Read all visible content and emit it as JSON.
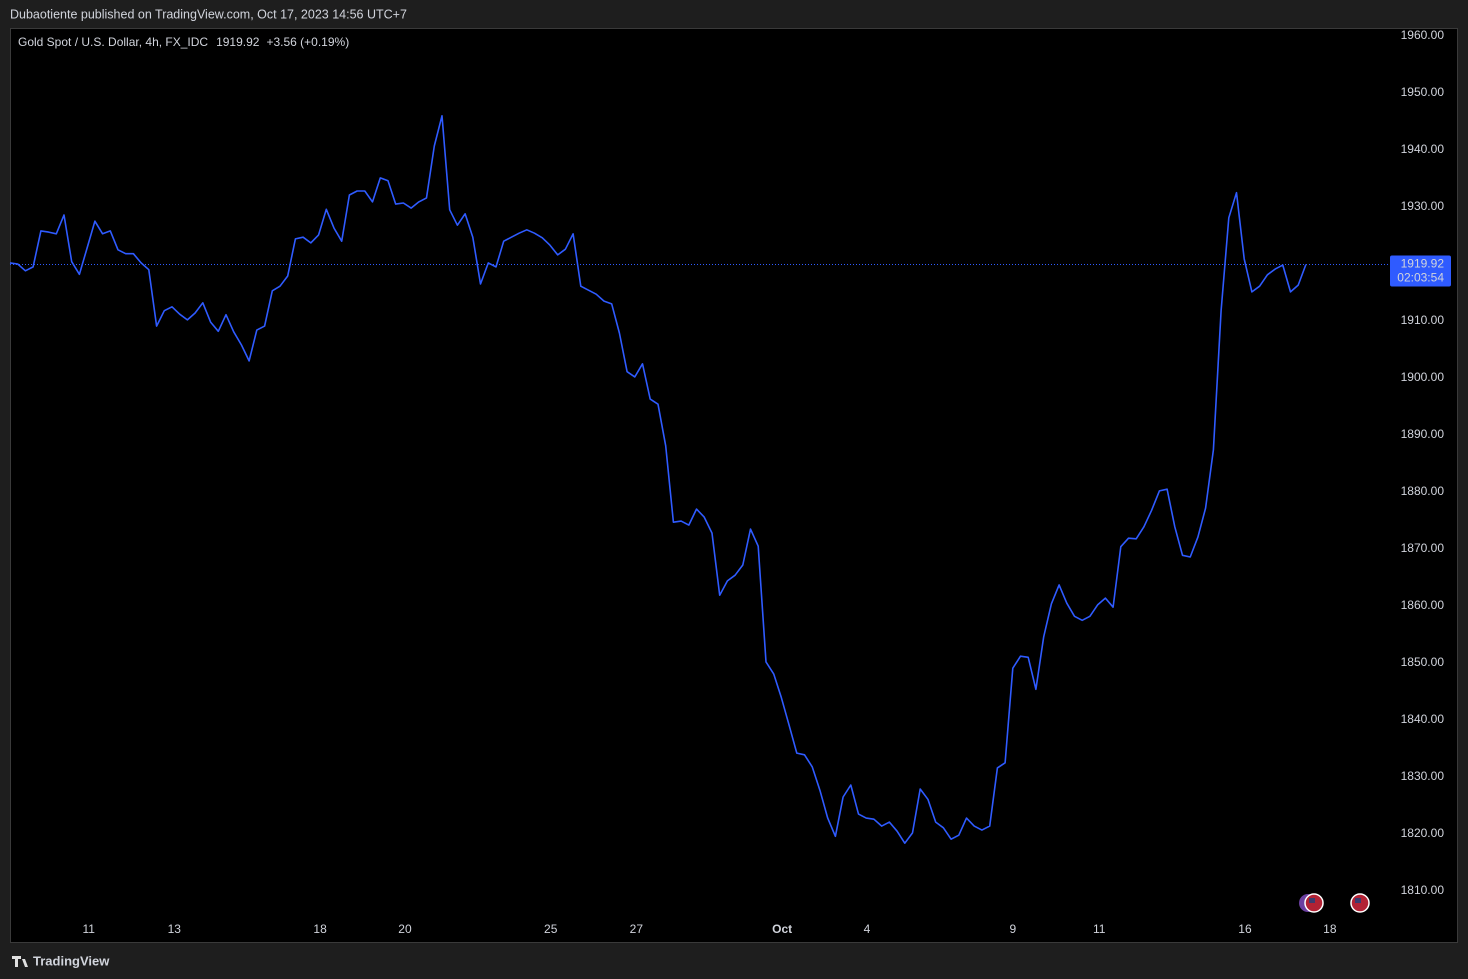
{
  "header": {
    "text": "Dubaotiente published on TradingView.com, Oct 17, 2023 14:56 UTC+7"
  },
  "footer": {
    "brand": "TradingView"
  },
  "chart_data": {
    "type": "line",
    "title": "Gold Spot / U.S. Dollar, 4h, FX_IDC",
    "last_value": 1919.92,
    "change": "+3.56 (+0.19%)",
    "countdown": "02:03:54",
    "color": "#2f5bff",
    "x": [
      0,
      1,
      2,
      3,
      4,
      5,
      6,
      7,
      8,
      9,
      10,
      11,
      12,
      13,
      14,
      15,
      16,
      17,
      18,
      19,
      20,
      21,
      22,
      23,
      24,
      25,
      26,
      27,
      28,
      29,
      30,
      31,
      32,
      33,
      34,
      35,
      36,
      37,
      38,
      39,
      40,
      41,
      42,
      43,
      44,
      45,
      46,
      47,
      48,
      49,
      50,
      51,
      52,
      53,
      54,
      55,
      56,
      57,
      58,
      59,
      60,
      61,
      62,
      63,
      64,
      65,
      66,
      67,
      68,
      69,
      70,
      71,
      72,
      73,
      74,
      75,
      76,
      77,
      78,
      79,
      80,
      81,
      82,
      83,
      84,
      85,
      86,
      87,
      88,
      89,
      90,
      91,
      92,
      93,
      94,
      95,
      96,
      97,
      98,
      99,
      100,
      101,
      102,
      103,
      104,
      105,
      106,
      107,
      108,
      109,
      110,
      111,
      112,
      113,
      114,
      115,
      116,
      117,
      118,
      119,
      120,
      121,
      122,
      123,
      124,
      125,
      126,
      127,
      128,
      129,
      130,
      131,
      132,
      133,
      134,
      135,
      136,
      137,
      138,
      139,
      140,
      141,
      142,
      143,
      144,
      145,
      146,
      147,
      148,
      149,
      150,
      151,
      152,
      153,
      154,
      155,
      156,
      157,
      158,
      159,
      160,
      161,
      162,
      163,
      164,
      165,
      166,
      167,
      168
    ],
    "values": [
      1920.2,
      1920.0,
      1918.8,
      1919.5,
      1925.8,
      1925.6,
      1925.3,
      1928.6,
      1920.4,
      1918.2,
      1922.8,
      1927.5,
      1925.3,
      1925.8,
      1922.5,
      1921.8,
      1921.8,
      1920.2,
      1919.0,
      1909.1,
      1911.8,
      1912.5,
      1911.2,
      1910.2,
      1911.4,
      1913.2,
      1909.8,
      1908.2,
      1911.1,
      1908.1,
      1905.8,
      1903.0,
      1908.4,
      1909.1,
      1915.3,
      1916.1,
      1917.9,
      1924.4,
      1924.7,
      1923.7,
      1925.1,
      1929.6,
      1926.3,
      1924.0,
      1932.1,
      1932.8,
      1932.8,
      1930.9,
      1935.1,
      1934.6,
      1930.5,
      1930.7,
      1929.8,
      1930.9,
      1931.6,
      1940.7,
      1946.0,
      1929.5,
      1926.8,
      1928.8,
      1924.7,
      1916.5,
      1920.2,
      1919.5,
      1924.0,
      1924.7,
      1925.4,
      1926.0,
      1925.4,
      1924.6,
      1923.3,
      1921.6,
      1922.6,
      1925.3,
      1916.1,
      1915.4,
      1914.7,
      1913.5,
      1913.0,
      1907.9,
      1901.1,
      1900.2,
      1902.5,
      1896.3,
      1895.4,
      1888.1,
      1874.7,
      1874.9,
      1874.2,
      1877.0,
      1875.6,
      1872.8,
      1861.9,
      1864.4,
      1865.4,
      1867.2,
      1873.5,
      1870.5,
      1850.2,
      1848.1,
      1843.9,
      1839.1,
      1834.2,
      1833.9,
      1831.8,
      1827.7,
      1822.8,
      1819.6,
      1826.5,
      1828.6,
      1823.5,
      1822.8,
      1822.6,
      1821.4,
      1822.1,
      1820.5,
      1818.4,
      1820.2,
      1827.9,
      1826.1,
      1822.1,
      1821.1,
      1819.1,
      1819.8,
      1822.8,
      1821.4,
      1820.7,
      1821.4,
      1831.6,
      1832.5,
      1849.1,
      1851.2,
      1851.0,
      1845.4,
      1854.6,
      1860.4,
      1863.7,
      1860.5,
      1858.2,
      1857.5,
      1858.2,
      1860.2,
      1861.4,
      1859.8,
      1870.4,
      1871.9,
      1871.8,
      1873.9,
      1876.8,
      1880.2,
      1880.5,
      1873.9,
      1868.9,
      1868.6,
      1872.1,
      1877.2,
      1887.4,
      1911.8,
      1928.1,
      1932.5,
      1920.9,
      1915.1,
      1916.1,
      1918.1,
      1919.1,
      1919.8,
      1915.1,
      1916.3,
      1919.92
    ],
    "xlim": [
      0,
      178.9
    ],
    "xticks": [
      {
        "value": 10.2,
        "label": "11"
      },
      {
        "value": 21.3,
        "label": "13"
      },
      {
        "value": 40.2,
        "label": "18"
      },
      {
        "value": 51.2,
        "label": "20"
      },
      {
        "value": 70.1,
        "label": "25"
      },
      {
        "value": 81.2,
        "label": "27"
      },
      {
        "value": 100.1,
        "label": "Oct"
      },
      {
        "value": 111.1,
        "label": "4"
      },
      {
        "value": 130.0,
        "label": "9"
      },
      {
        "value": 141.2,
        "label": "11"
      },
      {
        "value": 160.1,
        "label": "16"
      },
      {
        "value": 171.1,
        "label": "18"
      }
    ],
    "ylim": [
      1805.8,
      1961.4
    ],
    "yticks": [
      {
        "value": 1810,
        "label": "1810.00"
      },
      {
        "value": 1820,
        "label": "1820.00"
      },
      {
        "value": 1830,
        "label": "1830.00"
      },
      {
        "value": 1840,
        "label": "1840.00"
      },
      {
        "value": 1850,
        "label": "1850.00"
      },
      {
        "value": 1860,
        "label": "1860.00"
      },
      {
        "value": 1870,
        "label": "1870.00"
      },
      {
        "value": 1880,
        "label": "1880.00"
      },
      {
        "value": 1890,
        "label": "1890.00"
      },
      {
        "value": 1900,
        "label": "1900.00"
      },
      {
        "value": 1910,
        "label": "1910.00"
      },
      {
        "value": 1920,
        "label": "1920.00"
      },
      {
        "value": 1930,
        "label": "1930.00"
      },
      {
        "value": 1940,
        "label": "1940.00"
      },
      {
        "value": 1950,
        "label": "1950.00"
      },
      {
        "value": 1960,
        "label": "1960.00"
      }
    ],
    "grid": false
  }
}
